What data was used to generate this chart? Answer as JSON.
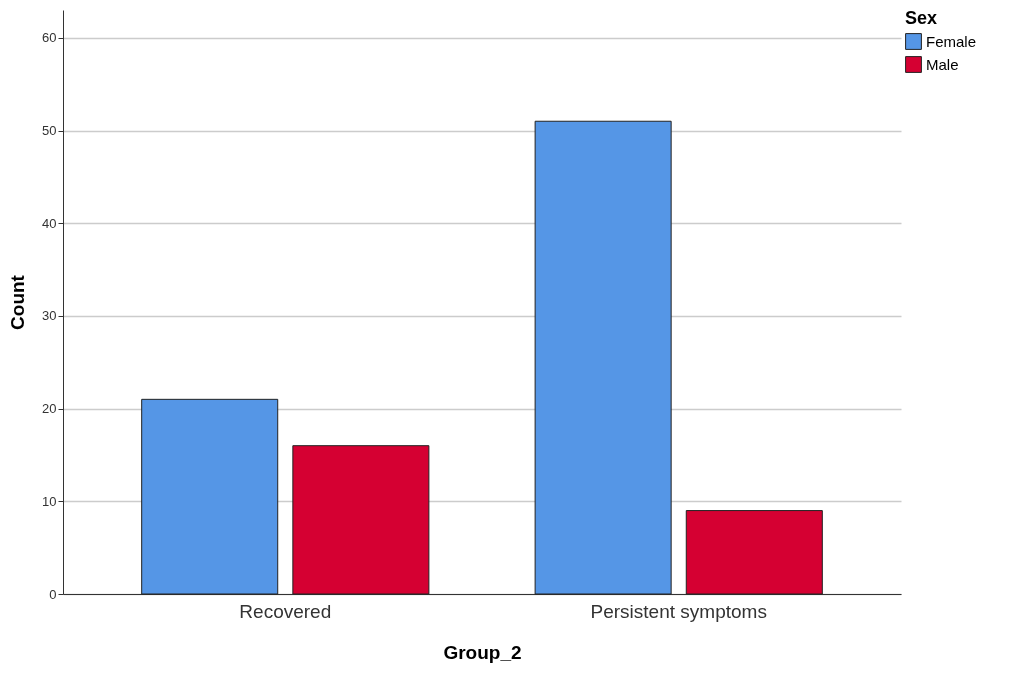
{
  "chart_data": {
    "type": "bar",
    "xlabel": "Group_2",
    "ylabel": "Count",
    "legend_title": "Sex",
    "categories": [
      "Recovered",
      "Persistent symptoms"
    ],
    "series": [
      {
        "name": "Female",
        "color": "#5596e6",
        "values": [
          21,
          51
        ]
      },
      {
        "name": "Male",
        "color": "#d50032",
        "values": [
          16,
          9
        ]
      }
    ],
    "ylim": [
      0,
      63
    ],
    "yticks": [
      0,
      10,
      20,
      30,
      40,
      50,
      60
    ],
    "grid": "y",
    "legend": "top right"
  }
}
